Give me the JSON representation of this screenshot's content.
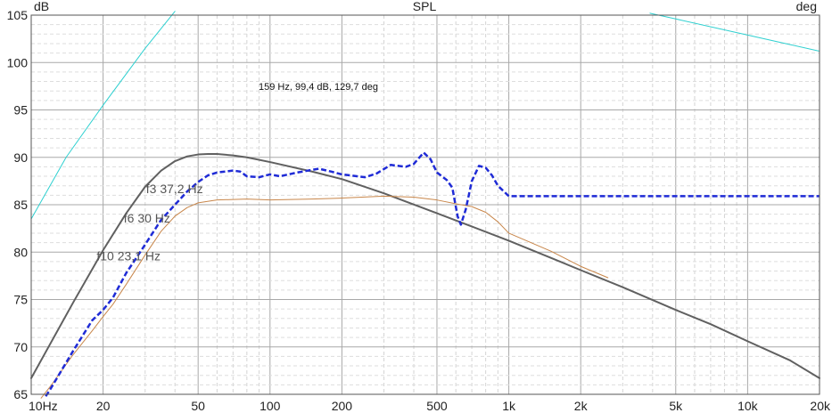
{
  "chart_data": {
    "type": "line",
    "title": "SPL",
    "ylabel": "dB",
    "y2label": "deg",
    "x_scale": "log",
    "xlim": [
      10,
      20000
    ],
    "ylim": [
      65,
      105
    ],
    "grid": true,
    "x_ticks": [
      {
        "value": 10,
        "label": "10Hz"
      },
      {
        "value": 20,
        "label": "20"
      },
      {
        "value": 50,
        "label": "50"
      },
      {
        "value": 100,
        "label": "100"
      },
      {
        "value": 200,
        "label": "200"
      },
      {
        "value": 500,
        "label": "500"
      },
      {
        "value": 1000,
        "label": "1k"
      },
      {
        "value": 2000,
        "label": "2k"
      },
      {
        "value": 5000,
        "label": "5k"
      },
      {
        "value": 10000,
        "label": "10k"
      },
      {
        "value": 20000,
        "label": "20k"
      }
    ],
    "y_ticks": [
      65,
      70,
      75,
      80,
      85,
      90,
      95,
      100,
      105
    ],
    "cursor_readout": "159 Hz, 99,4 dB, 129,7 deg",
    "annotations": [
      {
        "text": "f3 37,2 Hz",
        "x": 37.2,
        "y": 86.7
      },
      {
        "text": "f6 30 Hz",
        "x": 30,
        "y": 83.6
      },
      {
        "text": "f10 23,1 Hz",
        "x": 23.1,
        "y": 79.6
      }
    ],
    "series": [
      {
        "color": "#606060",
        "style": "solid",
        "width": 2,
        "points": [
          [
            10,
            66.7
          ],
          [
            12,
            70.3
          ],
          [
            15,
            74.7
          ],
          [
            20,
            80.2
          ],
          [
            25,
            84.1
          ],
          [
            30,
            86.9
          ],
          [
            35,
            88.6
          ],
          [
            40,
            89.6
          ],
          [
            45,
            90.1
          ],
          [
            50,
            90.3
          ],
          [
            55,
            90.35
          ],
          [
            60,
            90.35
          ],
          [
            70,
            90.2
          ],
          [
            80,
            90.0
          ],
          [
            100,
            89.5
          ],
          [
            150,
            88.5
          ],
          [
            200,
            87.7
          ],
          [
            300,
            86.2
          ],
          [
            500,
            84.1
          ],
          [
            700,
            82.7
          ],
          [
            1000,
            81.2
          ],
          [
            1500,
            79.4
          ],
          [
            2000,
            78.1
          ],
          [
            3000,
            76.3
          ],
          [
            5000,
            73.9
          ],
          [
            7000,
            72.4
          ],
          [
            10000,
            70.6
          ],
          [
            15000,
            68.6
          ],
          [
            20000,
            66.7
          ]
        ]
      },
      {
        "color": "#c8864a",
        "style": "solid",
        "width": 1,
        "points": [
          [
            11,
            64.6
          ],
          [
            12,
            65.8
          ],
          [
            15,
            69.2
          ],
          [
            18,
            71.7
          ],
          [
            20,
            73.2
          ],
          [
            22,
            74.5
          ],
          [
            25,
            76.6
          ],
          [
            30,
            79.7
          ],
          [
            35,
            82.2
          ],
          [
            40,
            83.8
          ],
          [
            45,
            84.7
          ],
          [
            50,
            85.2
          ],
          [
            60,
            85.5
          ],
          [
            80,
            85.6
          ],
          [
            100,
            85.5
          ],
          [
            150,
            85.6
          ],
          [
            200,
            85.7
          ],
          [
            300,
            85.9
          ],
          [
            400,
            85.8
          ],
          [
            500,
            85.5
          ],
          [
            600,
            85.1
          ],
          [
            700,
            84.8
          ],
          [
            800,
            84.2
          ],
          [
            900,
            83.2
          ],
          [
            1000,
            82.0
          ],
          [
            1500,
            80.1
          ],
          [
            2000,
            78.5
          ],
          [
            2600,
            77.3
          ]
        ]
      },
      {
        "color": "#1f2bd6",
        "style": "dashed",
        "width": 2.5,
        "points": [
          [
            11.5,
            64.8
          ],
          [
            12,
            65.5
          ],
          [
            15,
            69.6
          ],
          [
            18,
            72.8
          ],
          [
            20,
            73.9
          ],
          [
            22,
            75.2
          ],
          [
            25,
            77.8
          ],
          [
            30,
            80.8
          ],
          [
            35,
            83.4
          ],
          [
            40,
            85.0
          ],
          [
            45,
            86.4
          ],
          [
            50,
            87.4
          ],
          [
            55,
            88.1
          ],
          [
            60,
            88.4
          ],
          [
            70,
            88.6
          ],
          [
            75,
            88.5
          ],
          [
            80,
            88.0
          ],
          [
            90,
            87.9
          ],
          [
            100,
            88.2
          ],
          [
            110,
            88.0
          ],
          [
            130,
            88.4
          ],
          [
            160,
            88.8
          ],
          [
            180,
            88.5
          ],
          [
            200,
            88.2
          ],
          [
            250,
            87.9
          ],
          [
            280,
            88.3
          ],
          [
            320,
            89.2
          ],
          [
            370,
            89.0
          ],
          [
            400,
            89.3
          ],
          [
            440,
            90.5
          ],
          [
            470,
            89.8
          ],
          [
            500,
            88.4
          ],
          [
            550,
            87.6
          ],
          [
            580,
            86.8
          ],
          [
            610,
            83.8
          ],
          [
            630,
            82.9
          ],
          [
            660,
            84.5
          ],
          [
            700,
            87.5
          ],
          [
            750,
            89.1
          ],
          [
            800,
            88.9
          ],
          [
            850,
            88.1
          ],
          [
            900,
            87.0
          ],
          [
            1000,
            85.9
          ],
          [
            20000,
            85.9
          ]
        ]
      },
      {
        "color": "#2ed0d0",
        "style": "solid",
        "width": 1,
        "points": [
          [
            10,
            83.5
          ],
          [
            14,
            90.0
          ],
          [
            20,
            95.5
          ],
          [
            30,
            101.5
          ],
          [
            40,
            105.4
          ]
        ]
      },
      {
        "color": "#2ed0d0",
        "style": "solid",
        "width": 1,
        "points": [
          [
            3900,
            105.2
          ],
          [
            5000,
            104.6
          ],
          [
            10000,
            102.9
          ],
          [
            15000,
            101.9
          ],
          [
            20000,
            101.2
          ]
        ]
      }
    ]
  }
}
